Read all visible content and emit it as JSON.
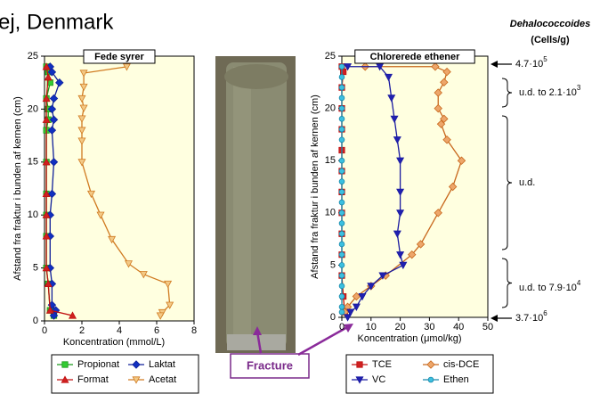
{
  "header": {
    "title": "ej, Denmark"
  },
  "photo_label": "Fracture",
  "annotations": {
    "heading": "Dehalococcoides",
    "unit": "(Cells/g)",
    "items": [
      {
        "text": "4.7·10",
        "sup": "5"
      },
      {
        "text": "u.d. to 2.1·10",
        "sup": "3"
      },
      {
        "text": "u.d."
      },
      {
        "text": "u.d. to 7.9·10",
        "sup": "4"
      },
      {
        "text": "3.7·10",
        "sup": "6"
      }
    ]
  },
  "chart_data": [
    {
      "type": "line",
      "title": "Fede syrer",
      "xlabel": "Koncentration (mmol/L)",
      "ylabel": "Afstand fra fraktur i bunden af kernen (cm)",
      "xlim": [
        0,
        8
      ],
      "xticks": [
        0,
        2,
        4,
        6,
        8
      ],
      "ylim": [
        0,
        25
      ],
      "yticks": [
        0,
        5,
        10,
        15,
        20,
        25
      ],
      "series": [
        {
          "name": "Propionat",
          "color": "#1a9a1a",
          "fill": "#33cc33",
          "marker": "square",
          "x": [
            0.1,
            0.2,
            0.3,
            0.1,
            0.2,
            0.2,
            0.1,
            0.1,
            0.1,
            0.1,
            0.1,
            0.1,
            0.2,
            0.3,
            0.5
          ],
          "y": [
            24,
            23.5,
            22.5,
            21,
            20,
            19,
            18,
            15,
            12,
            10,
            8,
            5,
            3.5,
            1,
            0.5
          ]
        },
        {
          "name": "Laktat",
          "color": "#10209a",
          "fill": "#1030c0",
          "marker": "diamond",
          "x": [
            0.3,
            0.4,
            0.8,
            0.5,
            0.4,
            0.5,
            0.4,
            0.5,
            0.4,
            0.3,
            0.3,
            0.3,
            0.4,
            0.4,
            0.6,
            0.5
          ],
          "y": [
            24,
            23.5,
            22.5,
            21,
            20,
            19,
            18,
            15,
            12,
            10,
            8,
            5,
            3.5,
            1.5,
            1,
            0.5
          ]
        },
        {
          "name": "Format",
          "color": "#c01010",
          "fill": "#d02020",
          "marker": "triangle-up",
          "x": [
            0.1,
            0.2,
            0.1,
            0.1,
            0.1,
            0.1,
            0.1,
            0.1,
            0.1,
            0.2,
            0.3,
            1.5
          ],
          "y": [
            24,
            23,
            21,
            19,
            15,
            12,
            10,
            8,
            5,
            3.5,
            1,
            0.5
          ]
        },
        {
          "name": "Acetat",
          "color": "#d07a20",
          "fill": "#f3c985",
          "marker": "triangle-down",
          "x": [
            4.4,
            2.1,
            2.1,
            2.0,
            2.1,
            2.0,
            2.0,
            2.0,
            2.0,
            2.5,
            3.0,
            3.6,
            4.5,
            5.3,
            6.6,
            6.7,
            6.3,
            6.2
          ],
          "y": [
            24,
            23.4,
            22.1,
            21,
            20.1,
            19.1,
            18,
            17,
            15,
            12,
            10,
            7.7,
            5.4,
            4.4,
            3.5,
            1.5,
            0.8,
            0.5
          ]
        }
      ]
    },
    {
      "type": "line",
      "title": "Chlorerede ethener",
      "xlabel": "Koncentration (μmol/kg)",
      "ylabel": "Afstand fra fraktur i bunden af kernen (cm)",
      "xlim": [
        0,
        50
      ],
      "xticks": [
        0,
        10,
        20,
        30,
        40,
        50
      ],
      "ylim": [
        0,
        25
      ],
      "yticks": [
        0,
        5,
        10,
        15,
        20,
        25
      ],
      "series": [
        {
          "name": "TCE",
          "color": "#c01010",
          "fill": "#d02020",
          "marker": "square",
          "x": [
            0,
            0.5,
            0,
            0,
            0,
            0,
            0,
            0,
            0,
            0,
            0,
            0,
            0.5,
            1
          ],
          "y": [
            24,
            23.5,
            22,
            20,
            18,
            16,
            14,
            12,
            10,
            8,
            6,
            4,
            2,
            0.5
          ]
        },
        {
          "name": "cis-DCE",
          "color": "#c8671c",
          "fill": "#eda66a",
          "marker": "diamond",
          "x": [
            8,
            32,
            36,
            35,
            33,
            33,
            35,
            34,
            36,
            41,
            38,
            33,
            27,
            24,
            15,
            10,
            5,
            2,
            1
          ],
          "y": [
            24,
            24,
            23.5,
            22.5,
            21.5,
            20,
            19,
            18.5,
            17,
            15,
            12.5,
            10,
            7,
            6,
            4,
            3,
            2,
            1,
            0.5
          ]
        },
        {
          "name": "VC",
          "color": "#1a1aa0",
          "fill": "#2020b0",
          "marker": "triangle-down",
          "x": [
            2,
            13,
            16,
            17,
            18,
            19,
            20,
            20,
            20,
            19,
            20,
            21,
            14,
            10,
            7,
            5,
            3,
            2
          ],
          "y": [
            24,
            24,
            23,
            21,
            19,
            17,
            15,
            12,
            10,
            8,
            6,
            5,
            4,
            3,
            2,
            1,
            0.5,
            0
          ]
        },
        {
          "name": "Ethen",
          "color": "#1888aa",
          "fill": "#3cc0e0",
          "marker": "circle",
          "x": [
            0,
            0,
            0,
            0,
            0,
            0,
            0,
            0,
            0,
            0,
            0,
            0,
            0,
            0,
            0,
            0,
            0,
            0,
            0,
            0,
            0,
            0,
            0,
            0
          ],
          "y": [
            24,
            23,
            22,
            21,
            20,
            19,
            18,
            17,
            15,
            14,
            13,
            12,
            11,
            10,
            9,
            8,
            7,
            6,
            5,
            4,
            3,
            2,
            1,
            0.5
          ]
        }
      ]
    }
  ]
}
